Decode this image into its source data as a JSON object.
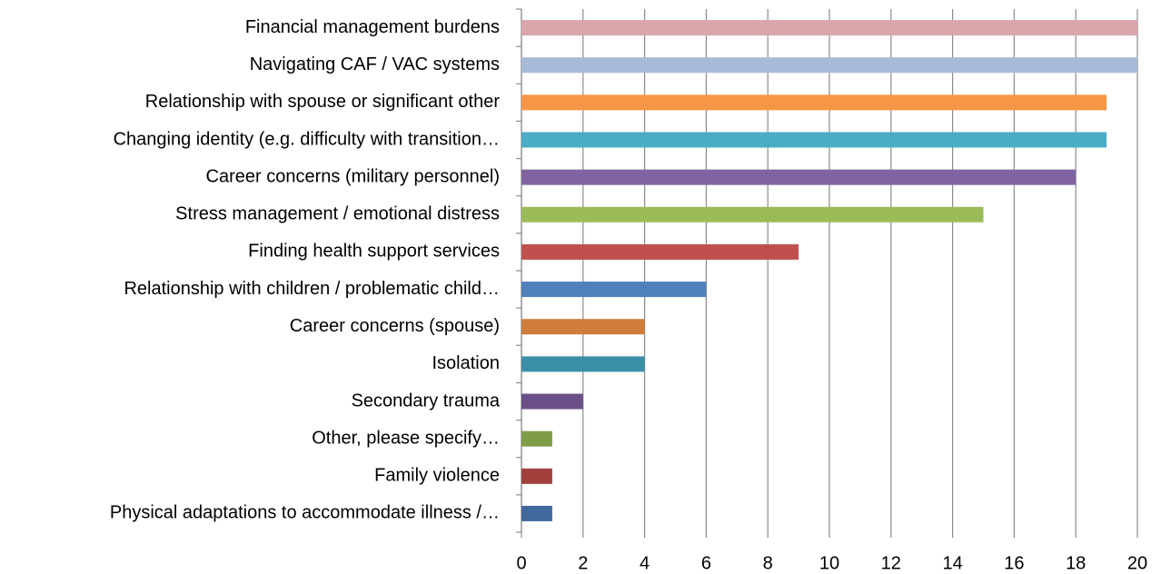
{
  "chart_data": {
    "type": "bar",
    "orientation": "horizontal",
    "categories": [
      "Financial management burdens",
      "Navigating CAF / VAC systems",
      "Relationship with spouse or significant other",
      "Changing identity (e.g. difficulty with transition…",
      "Career concerns (military personnel)",
      "Stress management / emotional distress",
      "Finding health support services",
      "Relationship with children / problematic child…",
      "Career concerns (spouse)",
      "Isolation",
      "Secondary trauma",
      "Other, please specify…",
      "Family violence",
      "Physical adaptations to accommodate illness /…"
    ],
    "values": [
      20,
      20,
      19,
      19,
      18,
      15,
      9,
      6,
      4,
      4,
      2,
      1,
      1,
      1
    ],
    "colors": [
      "#d9a6a9",
      "#a9bad9",
      "#f79646",
      "#4bacc6",
      "#8064a2",
      "#9bbb59",
      "#c0504d",
      "#4f81bd",
      "#d07c3a",
      "#3b8fa6",
      "#6a4f89",
      "#7f9c48",
      "#a3403d",
      "#41699d"
    ],
    "xlim": [
      0,
      20
    ],
    "xticks": [
      0,
      2,
      4,
      6,
      8,
      10,
      12,
      14,
      16,
      18,
      20
    ],
    "grid": true
  }
}
